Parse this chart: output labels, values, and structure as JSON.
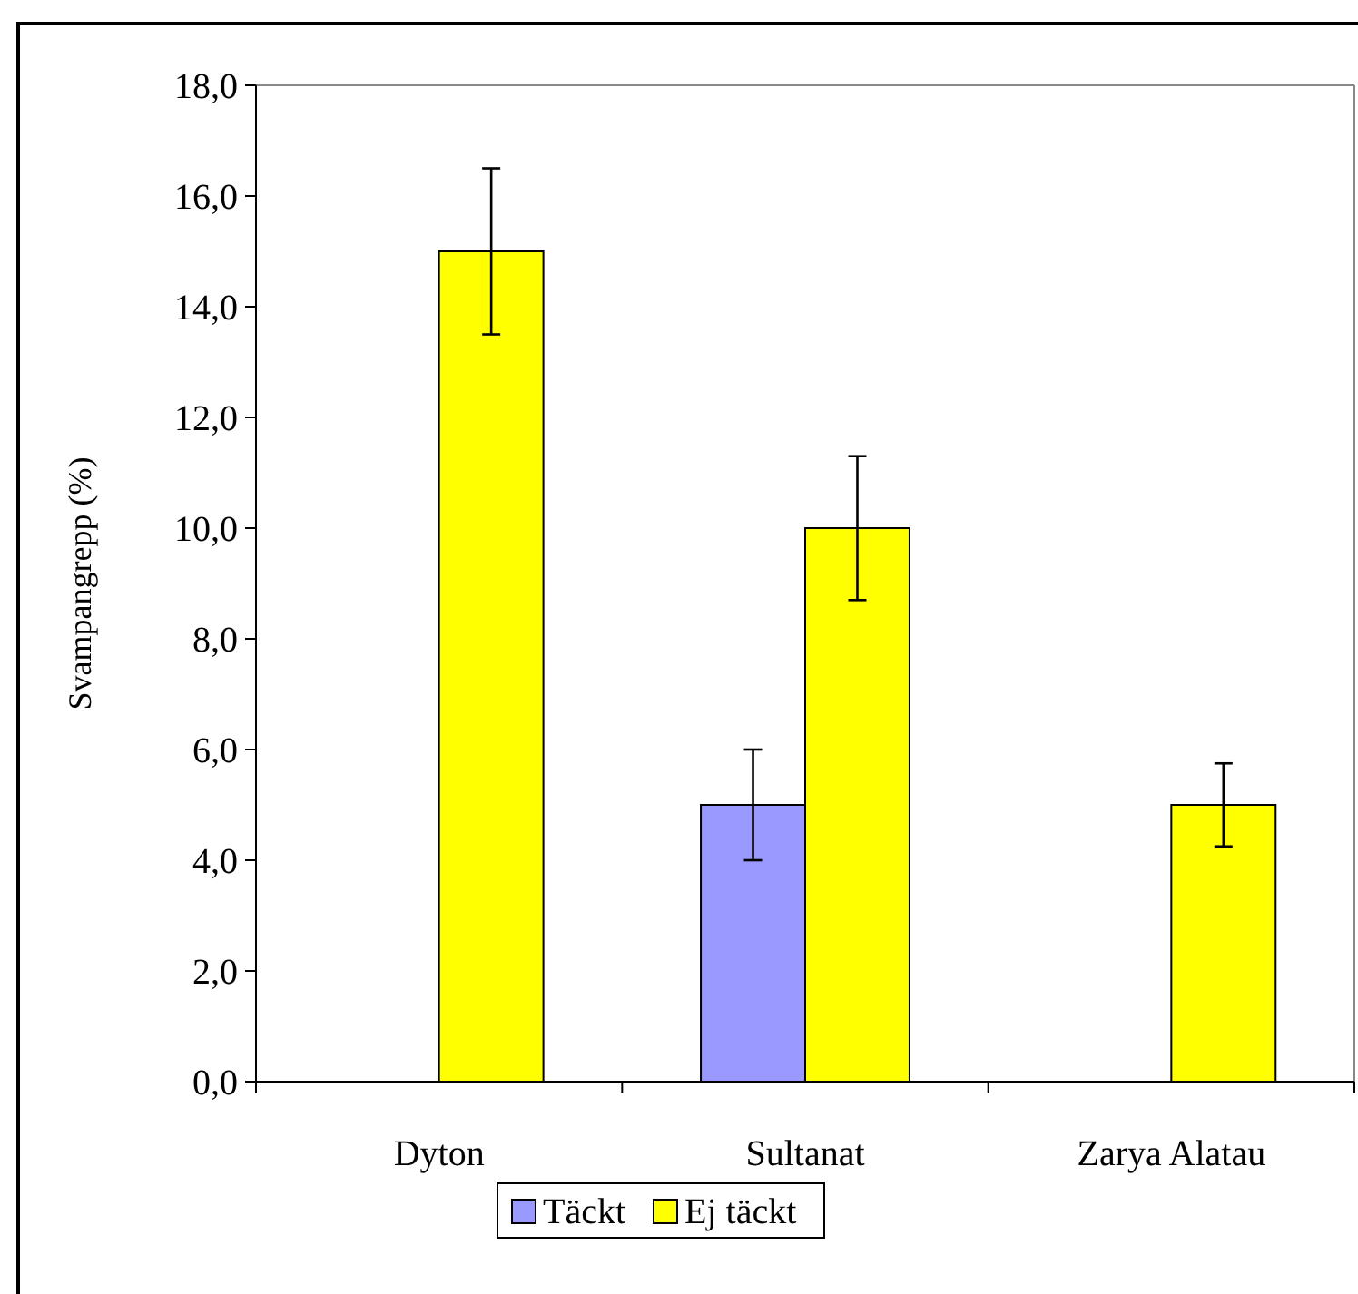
{
  "chart_data": {
    "type": "bar",
    "ylabel": "Svampangrepp (%)",
    "categories": [
      "Dyton",
      "Sultanat",
      "Zarya Alatau"
    ],
    "series": [
      {
        "name": "Täckt",
        "color": "#9999ff",
        "values": [
          0,
          5,
          0
        ],
        "errors": [
          null,
          1,
          null
        ]
      },
      {
        "name": "Ej täckt",
        "color": "#ffff00",
        "values": [
          15,
          10,
          5
        ],
        "errors": [
          1.5,
          1.3,
          0.75
        ]
      }
    ],
    "ylim": [
      0,
      18
    ],
    "yticks": [
      {
        "value": 0,
        "label": "0,0"
      },
      {
        "value": 2,
        "label": "2,0"
      },
      {
        "value": 4,
        "label": "4,0"
      },
      {
        "value": 6,
        "label": "6,0"
      },
      {
        "value": 8,
        "label": "8,0"
      },
      {
        "value": 10,
        "label": "10,0"
      },
      {
        "value": 12,
        "label": "12,0"
      },
      {
        "value": 14,
        "label": "14,0"
      },
      {
        "value": 16,
        "label": "16,0"
      },
      {
        "value": 18,
        "label": "18,0"
      }
    ],
    "grid": false,
    "legend": "bottom"
  }
}
